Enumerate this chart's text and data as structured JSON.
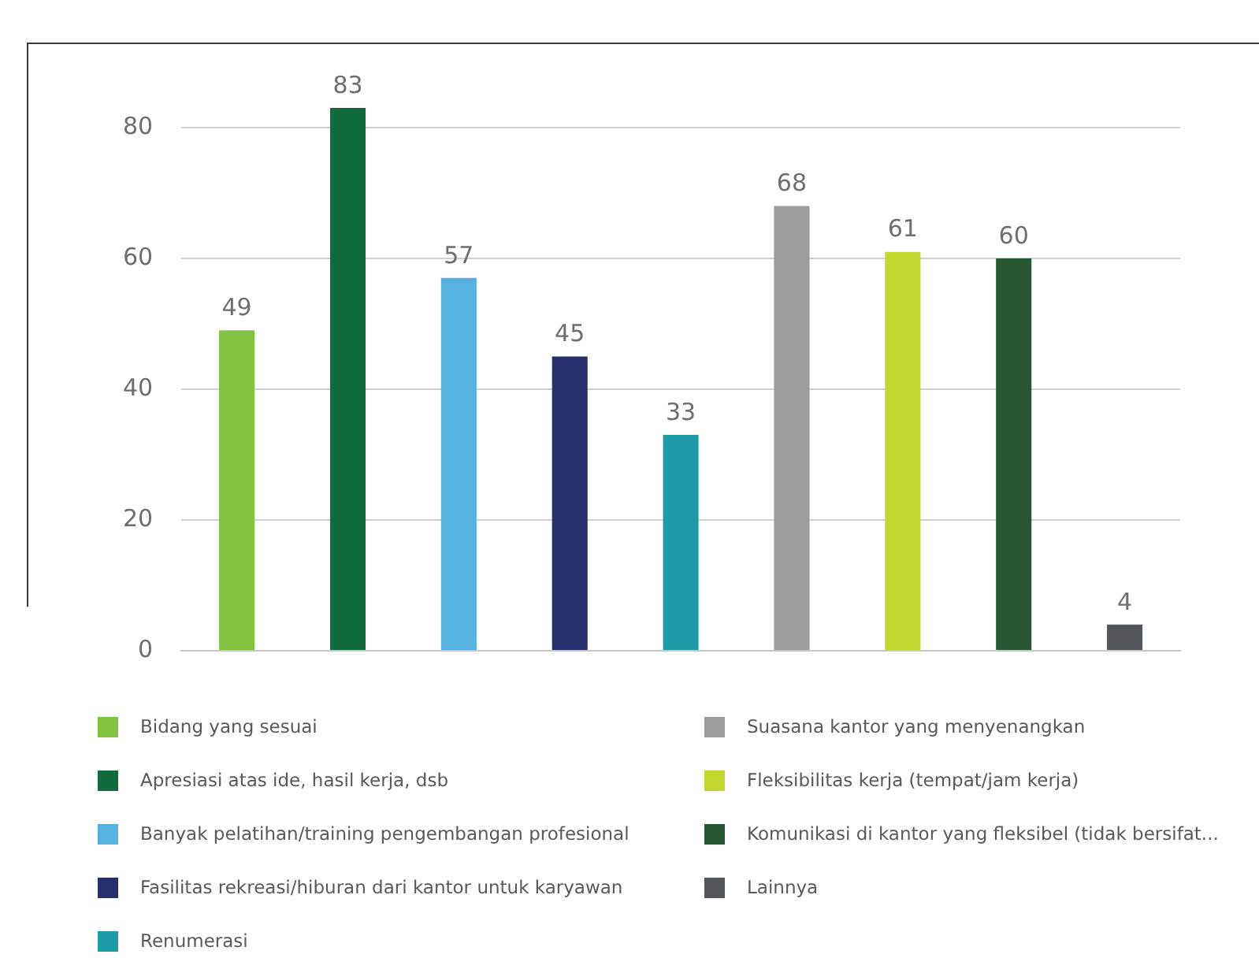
{
  "chart_data": {
    "type": "bar",
    "categories": [
      null,
      null,
      null,
      null,
      null,
      null,
      null,
      null,
      null
    ],
    "series": [
      {
        "name": "Bidang yang sesuai",
        "color": "#82c341",
        "values": [
          49,
          null,
          null,
          null,
          null,
          null,
          null,
          null,
          null
        ]
      },
      {
        "name": "Apresiasi atas ide, hasil kerja, dsb",
        "color": "#116b3d",
        "values": [
          null,
          83,
          null,
          null,
          null,
          null,
          null,
          null,
          null
        ]
      },
      {
        "name": "Banyak pelatihan/training pengembangan profesional",
        "color": "#56b0e0",
        "values": [
          null,
          null,
          57,
          null,
          null,
          null,
          null,
          null,
          null
        ]
      },
      {
        "name": "Fasilitas rekreasi/hiburan dari kantor untuk karyawan",
        "color": "#27306c",
        "values": [
          null,
          null,
          null,
          45,
          null,
          null,
          null,
          null,
          null
        ]
      },
      {
        "name": "Renumerasi",
        "color": "#1e9aa6",
        "values": [
          null,
          null,
          null,
          null,
          33,
          null,
          null,
          null,
          null
        ]
      },
      {
        "name": "Suasana kantor yang menyenangkan",
        "color": "#9b9c9e",
        "values": [
          null,
          null,
          null,
          null,
          null,
          68,
          null,
          null,
          null
        ]
      },
      {
        "name": "Fleksibilitas kerja (tempat/jam kerja)",
        "color": "#c1d62e",
        "values": [
          null,
          null,
          null,
          null,
          null,
          null,
          61,
          null,
          null
        ]
      },
      {
        "name": "Komunikasi di kantor yang fleksibel (tidak bersifat...",
        "color": "#285733",
        "values": [
          null,
          null,
          null,
          null,
          null,
          null,
          null,
          60,
          null
        ]
      },
      {
        "name": "Lainnya",
        "color": "#53565a",
        "values": [
          null,
          null,
          null,
          null,
          null,
          null,
          null,
          null,
          4
        ]
      }
    ],
    "ylim": [
      0,
      93
    ],
    "yticks": [
      0,
      20,
      40,
      60,
      80
    ],
    "grid": "y",
    "data_labels": true,
    "legend": "bottom",
    "tick_labels": "y"
  }
}
